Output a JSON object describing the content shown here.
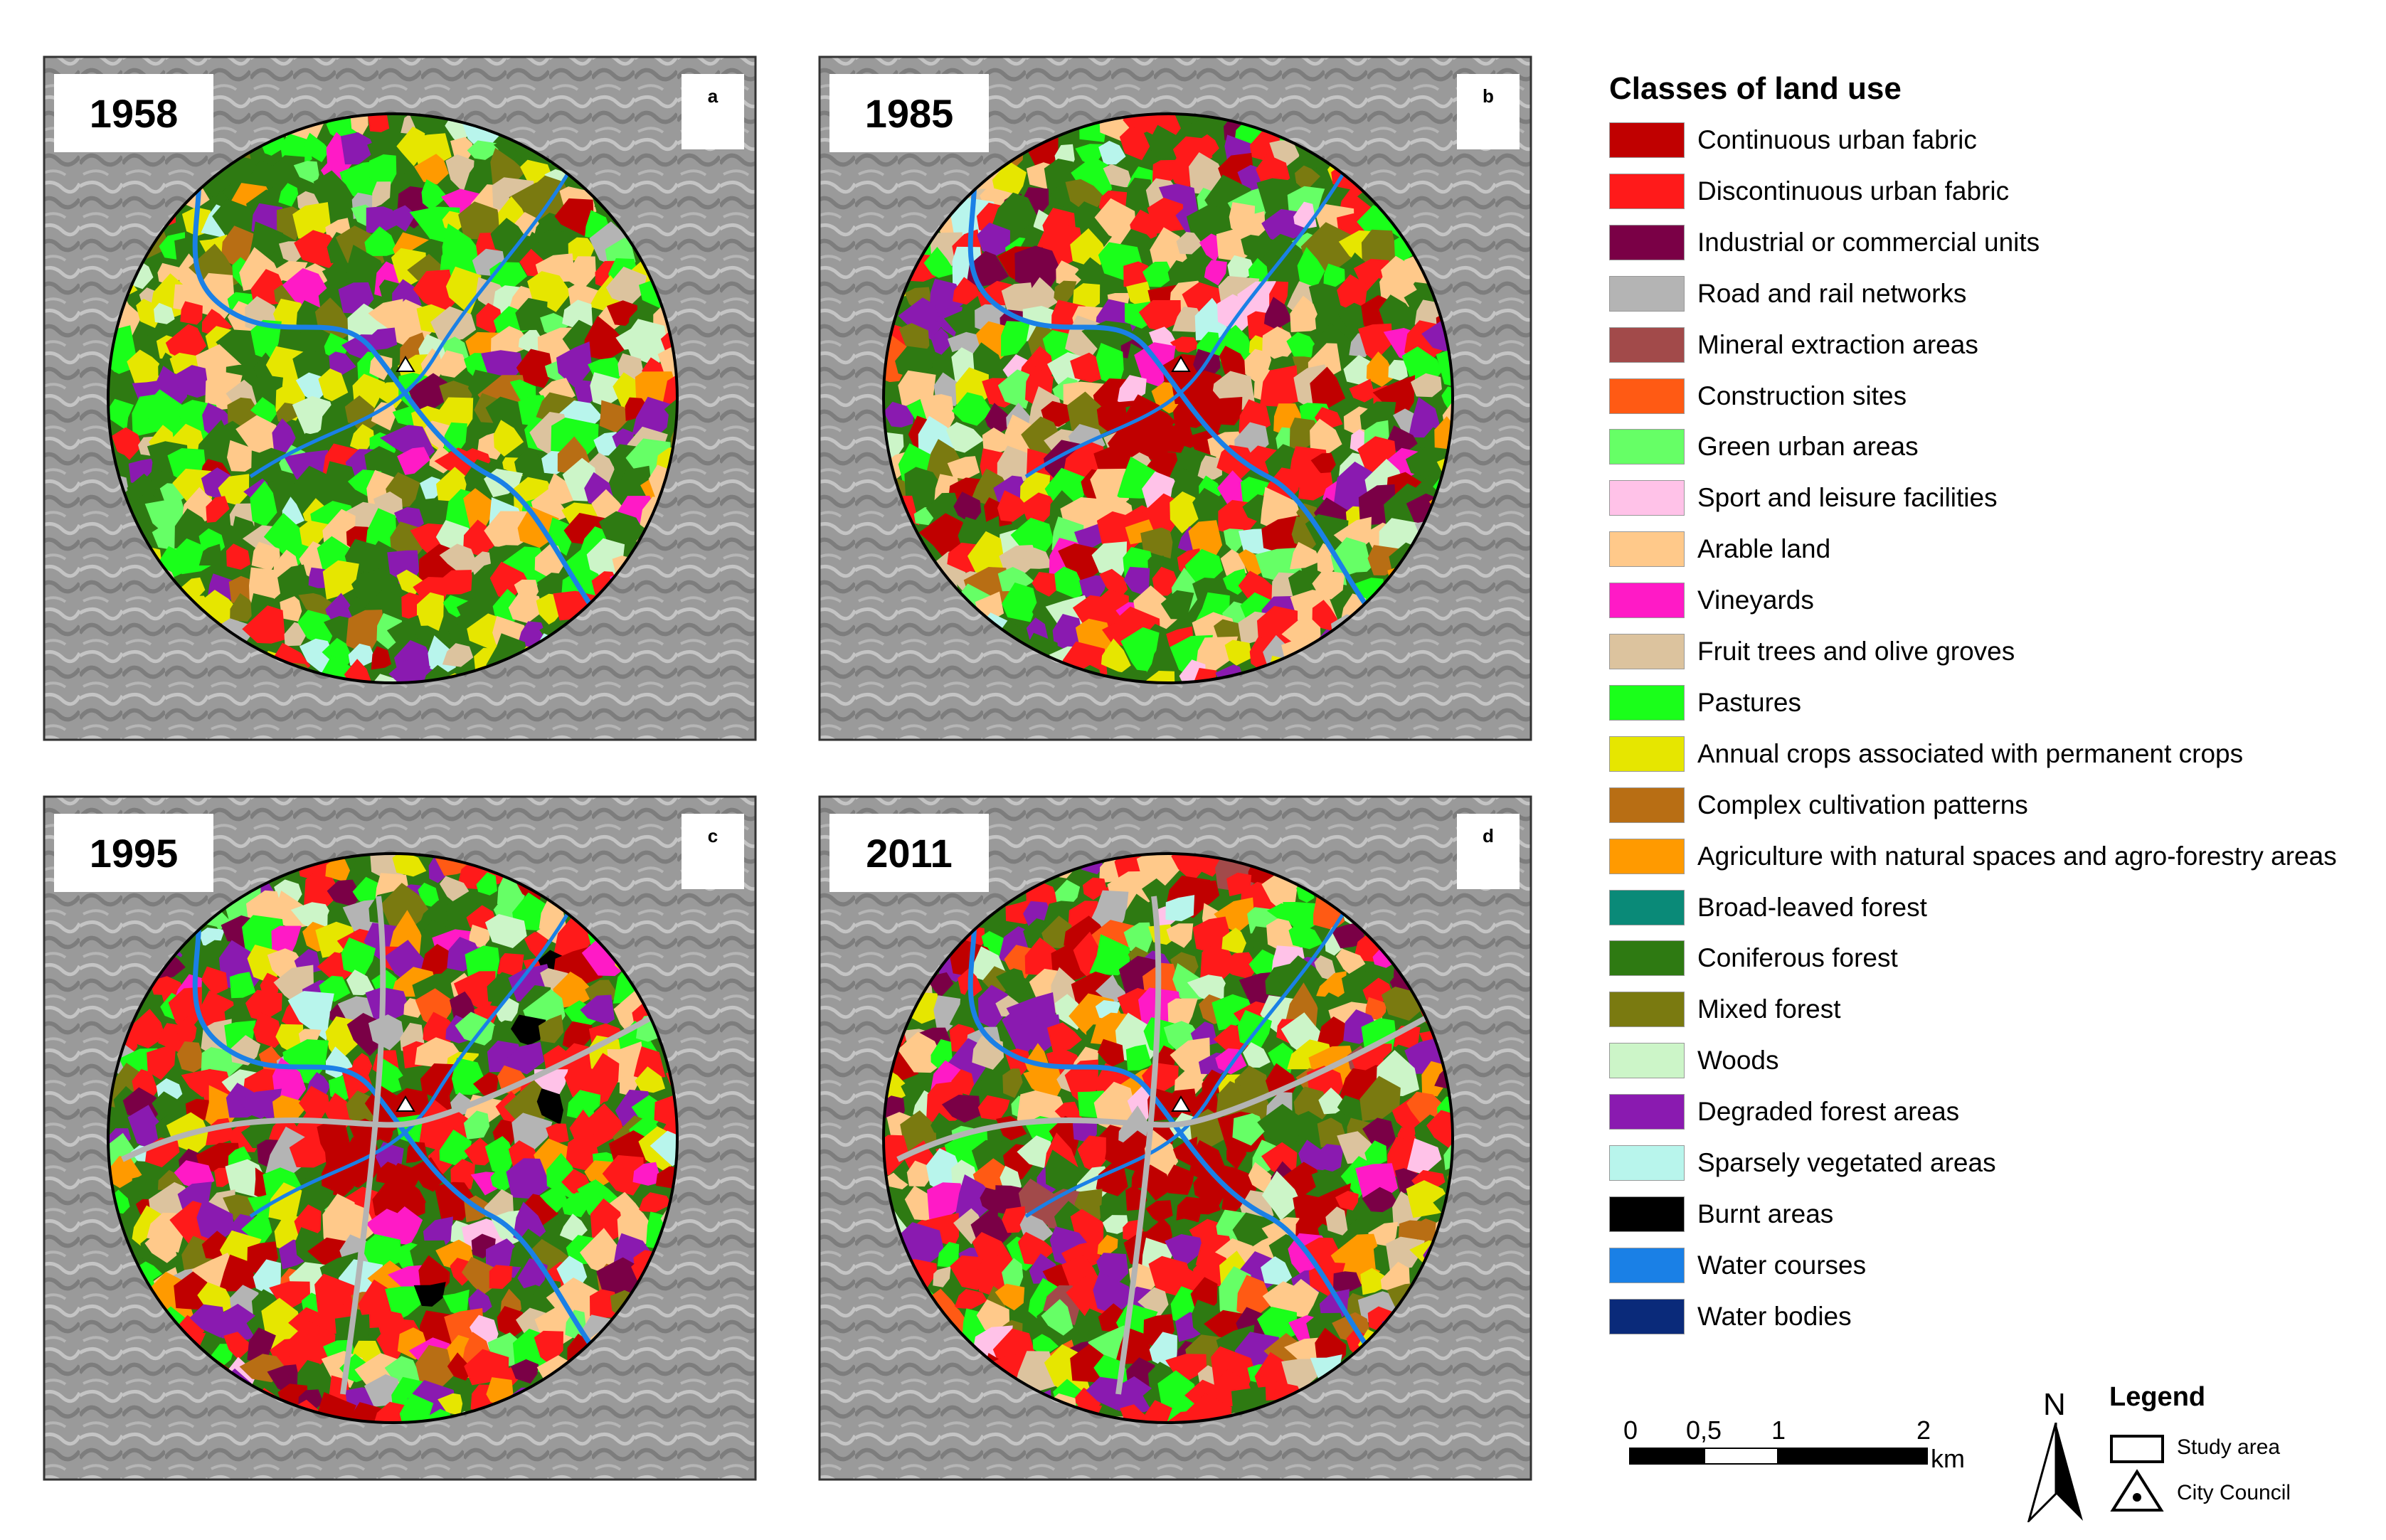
{
  "maps": [
    {
      "year": "1958",
      "letter": "a",
      "seed": 11
    },
    {
      "year": "1985",
      "letter": "b",
      "seed": 23
    },
    {
      "year": "1995",
      "letter": "c",
      "seed": 37
    },
    {
      "year": "2011",
      "letter": "d",
      "seed": 53
    }
  ],
  "legend": {
    "title": "Classes of land use",
    "items": [
      {
        "label": "Continuous urban fabric",
        "color": "#c00000"
      },
      {
        "label": "Discontinuous urban fabric",
        "color": "#ff1a1a"
      },
      {
        "label": "Industrial or commercial units",
        "color": "#7a0046"
      },
      {
        "label": "Road and rail networks",
        "color": "#b4b4b4"
      },
      {
        "label": "Mineral extraction areas",
        "color": "#a24a4a"
      },
      {
        "label": "Construction sites",
        "color": "#ff5a14"
      },
      {
        "label": "Green urban areas",
        "color": "#66ff66"
      },
      {
        "label": "Sport and leisure facilities",
        "color": "#ffc2e8"
      },
      {
        "label": "Arable land",
        "color": "#ffc98a"
      },
      {
        "label": "Vineyards",
        "color": "#ff1ac6"
      },
      {
        "label": "Fruit trees and olive groves",
        "color": "#dcc39e"
      },
      {
        "label": "Pastures",
        "color": "#1aff1a"
      },
      {
        "label": "Annual crops associated with permanent crops",
        "color": "#e6e600"
      },
      {
        "label": "Complex cultivation patterns",
        "color": "#b86e14"
      },
      {
        "label": "Agriculture with natural spaces and agro-forestry areas",
        "color": "#ff9a00"
      },
      {
        "label": "Broad-leaved forest",
        "color": "#0a8a78"
      },
      {
        "label": "Coniferous forest",
        "color": "#2e7a12"
      },
      {
        "label": "Mixed forest",
        "color": "#7a7a10"
      },
      {
        "label": "Woods",
        "color": "#ccf5c8"
      },
      {
        "label": "Degraded forest areas",
        "color": "#8a1ab0"
      },
      {
        "label": "Sparsely vegetated areas",
        "color": "#b8f5ec"
      },
      {
        "label": "Burnt areas",
        "color": "#000000"
      },
      {
        "label": "Water courses",
        "color": "#1a80e6"
      },
      {
        "label": "Water bodies",
        "color": "#0a2a7a"
      }
    ]
  },
  "scale": {
    "labels": [
      "0",
      "0,5",
      "1",
      "2"
    ],
    "unit": "km"
  },
  "north": "N",
  "map_legend": {
    "title": "Legend",
    "study_area": "Study area",
    "city_council": "City Council"
  }
}
